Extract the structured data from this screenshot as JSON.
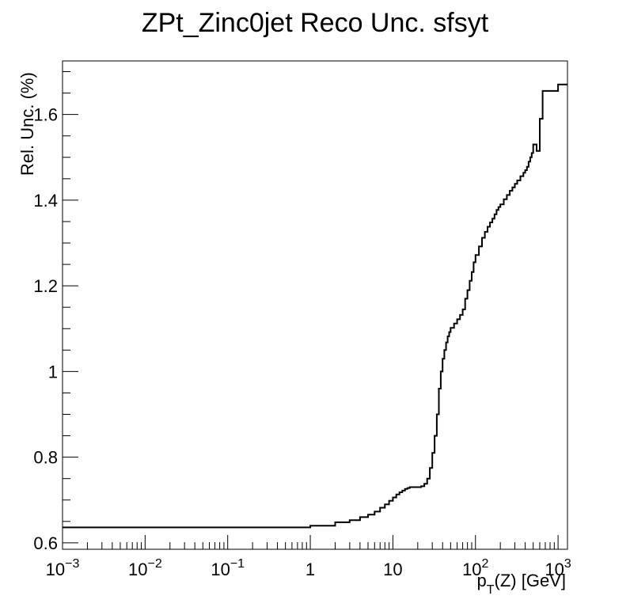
{
  "chart_data": {
    "type": "line",
    "title": "ZPt_Zinc0jet Reco Unc. sfsyt",
    "ylabel": "Rel. Unc. (%)",
    "xlabel_main": "p",
    "xlabel_sub": "T",
    "xlabel_rest": "(Z) [GeV]",
    "xscale": "log",
    "xlim": [
      0.001,
      1300
    ],
    "ylim": [
      0.585,
      1.725
    ],
    "grid": false,
    "legend": "none",
    "line_color": "#000000",
    "x_ticks": [
      {
        "base": "10",
        "exp": "−3"
      },
      {
        "base": "10",
        "exp": "−2"
      },
      {
        "base": "10",
        "exp": "−1"
      },
      {
        "base": "1",
        "exp": ""
      },
      {
        "base": "10",
        "exp": ""
      },
      {
        "base": "10",
        "exp": "2"
      },
      {
        "base": "10",
        "exp": "3"
      }
    ],
    "y_ticks": [
      "0.6",
      "0.8",
      "1",
      "1.2",
      "1.4",
      "1.6"
    ],
    "x": [
      0.001,
      1,
      2,
      3,
      4,
      5,
      6,
      7,
      8,
      9,
      10,
      11,
      12,
      13,
      14,
      15,
      16,
      18,
      20,
      22,
      24,
      26,
      28,
      30,
      32,
      34,
      36,
      38,
      40,
      42,
      44,
      46,
      48,
      50,
      55,
      60,
      65,
      70,
      75,
      80,
      85,
      90,
      95,
      100,
      110,
      120,
      130,
      140,
      150,
      160,
      170,
      180,
      190,
      200,
      220,
      240,
      260,
      280,
      300,
      320,
      350,
      380,
      400,
      420,
      440,
      460,
      480,
      500,
      550,
      600,
      650,
      800,
      1000,
      1300
    ],
    "y": [
      0.636,
      0.64,
      0.648,
      0.653,
      0.66,
      0.666,
      0.673,
      0.682,
      0.69,
      0.698,
      0.706,
      0.713,
      0.718,
      0.722,
      0.726,
      0.728,
      0.73,
      0.73,
      0.73,
      0.732,
      0.738,
      0.75,
      0.775,
      0.81,
      0.85,
      0.9,
      0.96,
      1.0,
      1.03,
      1.05,
      1.068,
      1.082,
      1.092,
      1.102,
      1.112,
      1.122,
      1.132,
      1.145,
      1.17,
      1.19,
      1.212,
      1.232,
      1.255,
      1.272,
      1.292,
      1.312,
      1.326,
      1.338,
      1.348,
      1.357,
      1.367,
      1.377,
      1.384,
      1.39,
      1.402,
      1.412,
      1.422,
      1.43,
      1.438,
      1.446,
      1.456,
      1.464,
      1.47,
      1.478,
      1.49,
      1.5,
      1.51,
      1.53,
      1.515,
      1.59,
      1.655,
      1.655,
      1.67,
      1.67
    ]
  }
}
